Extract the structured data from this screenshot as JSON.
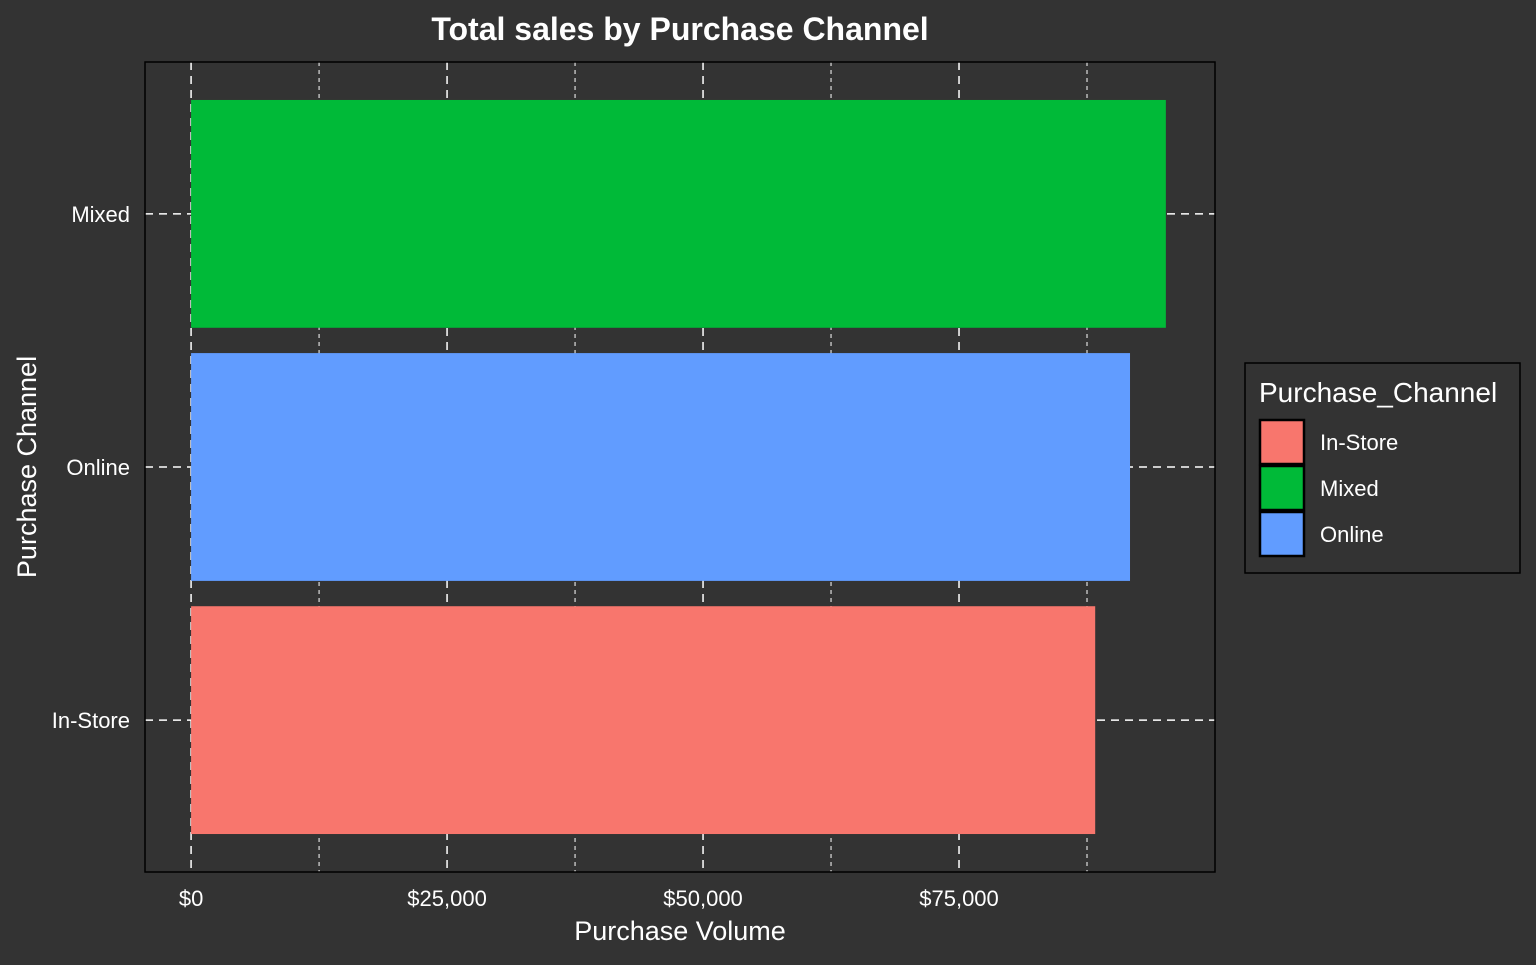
{
  "chart_data": {
    "type": "bar",
    "orientation": "horizontal",
    "title": "Total sales by Purchase Channel",
    "xlabel": "Purchase Volume",
    "ylabel": "Purchase Channel",
    "categories": [
      "In-Store",
      "Online",
      "Mixed"
    ],
    "values": [
      88300,
      91700,
      95200
    ],
    "bar_colors": [
      "#F8766D",
      "#619CFF",
      "#00BA38"
    ],
    "xlim": [
      -4500,
      100000
    ],
    "xticks": [
      0,
      25000,
      50000,
      75000
    ],
    "xtick_labels": [
      "$0",
      "$25,000",
      "$50,000",
      "$75,000"
    ],
    "grid": true,
    "legend": {
      "title": "Purchase_Channel",
      "position": "right",
      "entries": [
        {
          "label": "In-Store",
          "color": "#F8766D"
        },
        {
          "label": "Mixed",
          "color": "#00BA38"
        },
        {
          "label": "Online",
          "color": "#619CFF"
        }
      ]
    },
    "theme": {
      "background": "#333333",
      "text_color": "#FFFFFF",
      "grid_color": "#FFFFFF"
    }
  }
}
